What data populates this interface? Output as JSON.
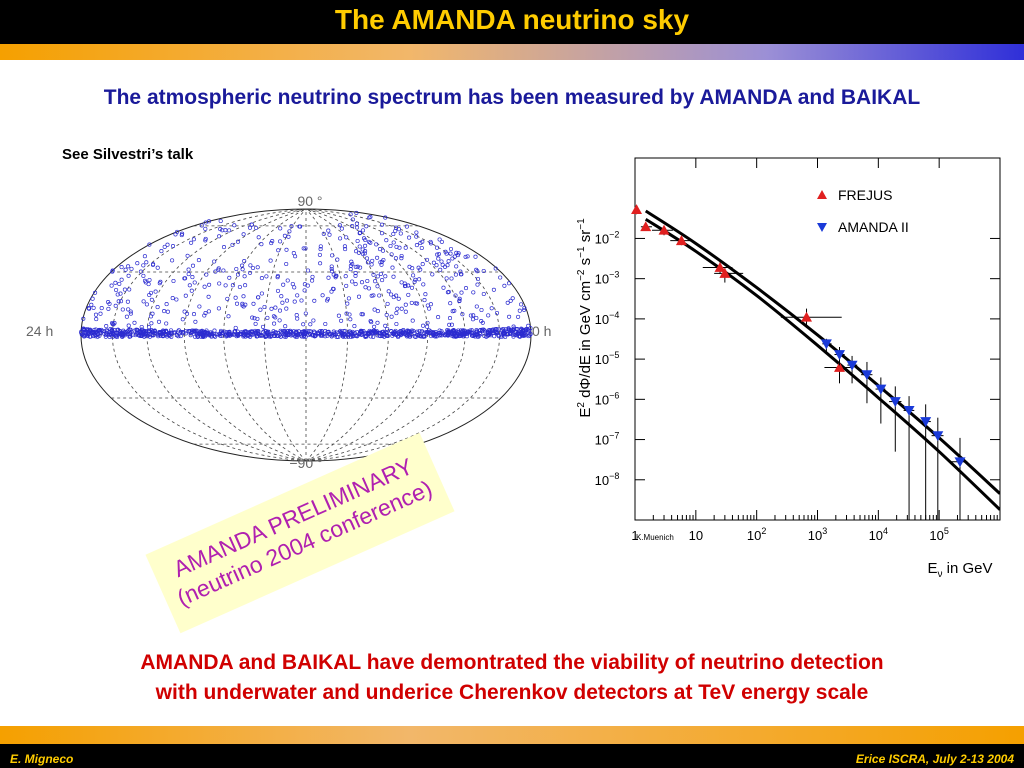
{
  "header": {
    "title": "The AMANDA neutrino sky"
  },
  "subtitle": "The atmospheric neutrino spectrum has been measured by AMANDA and BAIKAL",
  "note": "See Silvestri’s talk",
  "sky_map": {
    "top_label": "90 °",
    "bottom_label": "−90 °",
    "left_label": "24 h",
    "right_label": "0 h",
    "point_color": "#2c2cd0"
  },
  "stamp": {
    "line1": "AMANDA PRELIMINARY",
    "line2": "(neutrino 2004 conference)",
    "text_color": "#b020b0",
    "bg_color": "#ffffcc"
  },
  "conclusion": {
    "line1": "AMANDA and BAIKAL have demontrated the viability of neutrino detection",
    "line2": "with underwater and underice Cherenkov detectors at TeV energy scale"
  },
  "footer": {
    "left": "E. Migneco",
    "right": "Erice ISCRA, July 2-13  2004"
  },
  "colors": {
    "title": "#ffcc00",
    "subtitle": "#1a1a9a",
    "conclusion": "#d00000",
    "frejus": "#e02020",
    "amanda": "#1a3ad8"
  },
  "chart_data": {
    "type": "scatter",
    "xlog": true,
    "ylog": true,
    "xlim": [
      1,
      1000000
    ],
    "ylim": [
      1e-09,
      1
    ],
    "xlabel": "E_ν in GeV",
    "ylabel": "E² dΦ/dE in GeV cm⁻² s⁻¹ sr⁻¹",
    "credit": "K.Muenich",
    "x_ticks": [
      {
        "v": 1,
        "base": "1",
        "exp": ""
      },
      {
        "v": 10,
        "base": "10",
        "exp": ""
      },
      {
        "v": 100,
        "base": "10",
        "exp": "2"
      },
      {
        "v": 1000,
        "base": "10",
        "exp": "3"
      },
      {
        "v": 10000,
        "base": "10",
        "exp": "4"
      },
      {
        "v": 100000,
        "base": "10",
        "exp": "5"
      }
    ],
    "y_ticks": [
      {
        "v": 0.01,
        "base": "10",
        "exp": "−2"
      },
      {
        "v": 0.001,
        "base": "10",
        "exp": "−3"
      },
      {
        "v": 0.0001,
        "base": "10",
        "exp": "−4"
      },
      {
        "v": 1e-05,
        "base": "10",
        "exp": "−5"
      },
      {
        "v": 1e-06,
        "base": "10",
        "exp": "−6"
      },
      {
        "v": 1e-07,
        "base": "10",
        "exp": "−7"
      },
      {
        "v": 1e-08,
        "base": "10",
        "exp": "−8"
      }
    ],
    "legend": [
      {
        "name": "FREJUS",
        "marker": "triangle-up",
        "color": "#e02020"
      },
      {
        "name": "AMANDA II",
        "marker": "triangle-down",
        "color": "#1a3ad8"
      }
    ],
    "series": [
      {
        "name": "FREJUS",
        "marker": "triangle-up",
        "color": "#e02020",
        "points": [
          {
            "x": 1.06,
            "y": 0.052,
            "xlo": 1.0,
            "xhi": 1.1,
            "ylo": 0.04,
            "yhi": 0.065
          },
          {
            "x": 1.5,
            "y": 0.0195,
            "xlo": 1.25,
            "xhi": 1.9,
            "ylo": 0.016,
            "yhi": 0.024
          },
          {
            "x": 3.0,
            "y": 0.016,
            "xlo": 1.9,
            "xhi": 4.2,
            "ylo": 0.012,
            "yhi": 0.02
          },
          {
            "x": 5.8,
            "y": 0.0088,
            "xlo": 3.8,
            "xhi": 9.0,
            "ylo": 0.0068,
            "yhi": 0.011
          },
          {
            "x": 25,
            "y": 0.0019,
            "xlo": 13,
            "xhi": 40,
            "ylo": 0.0013,
            "yhi": 0.0026
          },
          {
            "x": 30,
            "y": 0.00135,
            "xlo": 20,
            "xhi": 60,
            "ylo": 0.0008,
            "yhi": 0.0019
          },
          {
            "x": 660,
            "y": 0.00011,
            "xlo": 250,
            "xhi": 2500,
            "ylo": 6e-05,
            "yhi": 0.00018
          },
          {
            "x": 2300,
            "y": 6.2e-06,
            "xlo": 1300,
            "xhi": 3500,
            "ylo": 2.5e-06,
            "yhi": 1.05e-05
          }
        ]
      },
      {
        "name": "AMANDA II",
        "marker": "triangle-down",
        "color": "#1a3ad8",
        "points": [
          {
            "x": 1400,
            "y": 2.4e-05,
            "xlo": 1200,
            "xhi": 1700,
            "ylo": 1.5e-05,
            "yhi": 3.2e-05
          },
          {
            "x": 2300,
            "y": 1.3e-05,
            "xlo": 1900,
            "xhi": 2800,
            "ylo": 7e-06,
            "yhi": 2e-05
          },
          {
            "x": 3700,
            "y": 7.1e-06,
            "xlo": 3100,
            "xhi": 4500,
            "ylo": 2.5e-06,
            "yhi": 1.2e-05
          },
          {
            "x": 6500,
            "y": 4.1e-06,
            "xlo": 5200,
            "xhi": 8000,
            "ylo": 8e-07,
            "yhi": 8.5e-06
          },
          {
            "x": 11000,
            "y": 1.8e-06,
            "xlo": 9000,
            "xhi": 13000,
            "ylo": 2.5e-07,
            "yhi": 3.5e-06
          },
          {
            "x": 19000,
            "y": 8.8e-07,
            "xlo": 15000,
            "xhi": 24000,
            "ylo": 5e-08,
            "yhi": 2.1e-06
          },
          {
            "x": 32000,
            "y": 5.3e-07,
            "xlo": 26000,
            "xhi": 39000,
            "ylo": 9e-10,
            "yhi": 1.2e-06
          },
          {
            "x": 60000,
            "y": 2.8e-07,
            "xlo": 48000,
            "xhi": 73000,
            "ylo": 1e-09,
            "yhi": 7.5e-07
          },
          {
            "x": 95000,
            "y": 1.25e-07,
            "xlo": 75000,
            "xhi": 118000,
            "ylo": 8e-10,
            "yhi": 3.5e-07
          },
          {
            "x": 220000,
            "y": 2.8e-08,
            "xlo": 150000,
            "xhi": 290000,
            "ylo": 8e-10,
            "yhi": 1.1e-07
          }
        ]
      }
    ],
    "bands": [
      {
        "name": "upper",
        "points": [
          [
            1.5,
            0.048
          ],
          [
            10,
            0.0075
          ],
          [
            100,
            0.0006
          ],
          [
            1000,
            4e-05
          ],
          [
            10000,
            2.2e-06
          ],
          [
            100000,
            1.1e-07
          ],
          [
            1000000,
            4.5e-09
          ]
        ]
      },
      {
        "name": "lower",
        "points": [
          [
            1.5,
            0.03
          ],
          [
            10,
            0.0048
          ],
          [
            100,
            0.00038
          ],
          [
            1000,
            2.2e-05
          ],
          [
            10000,
            1.1e-06
          ],
          [
            100000,
            5e-08
          ],
          [
            1000000,
            1.8e-09
          ]
        ]
      }
    ]
  }
}
